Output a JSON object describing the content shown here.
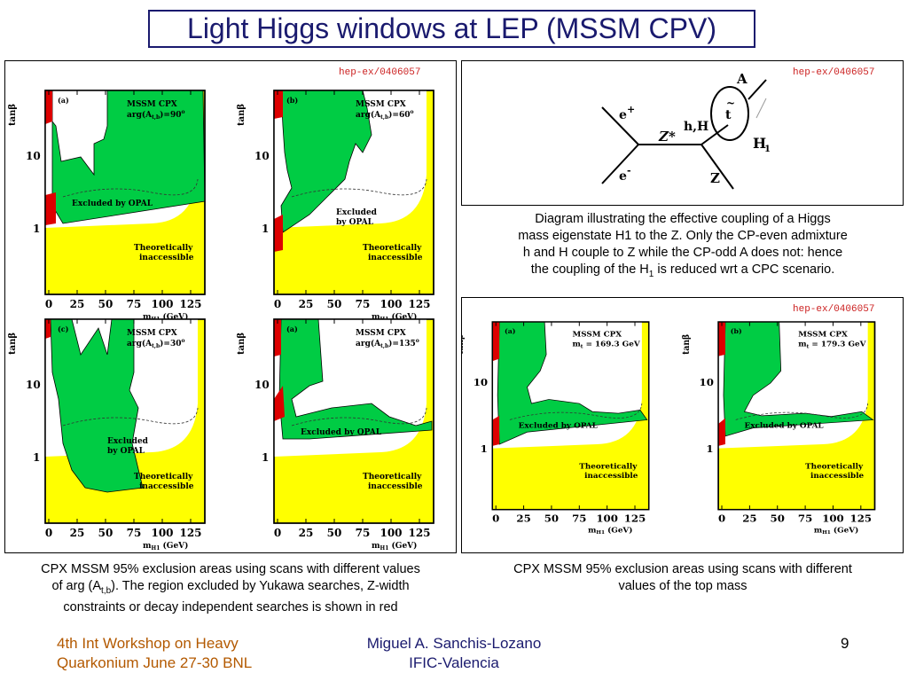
{
  "slide": {
    "title": "Light Higgs windows at LEP (MSSM CPV)",
    "page_number": "9"
  },
  "left_panel": {
    "ref": "hep-ex/0406057",
    "caption_line1": "CPX MSSM 95% exclusion areas using scans  with different values",
    "caption_line2_pre": "of arg (A",
    "caption_line2_sub": "t,b",
    "caption_line2_post": "). The region excluded by Yukawa searches, Z-width",
    "caption_line3": "constraints or decay independent searches is shown in red",
    "plots": [
      {
        "tag": "(a)",
        "label1": "MSSM CPX",
        "label2": "arg(A",
        "sub": "t,b",
        "label2_post": ")=90",
        "sup": "o",
        "excluded": "Excluded by OPAL",
        "theoretical1": "Theoretically",
        "theoretical2": "inaccessible"
      },
      {
        "tag": "(b)",
        "label1": "MSSM CPX",
        "label2": "arg(A",
        "sub": "t,b",
        "label2_post": ")=60",
        "sup": "o",
        "excluded": "Excluded",
        "excluded2": "by OPAL",
        "theoretical1": "Theoretically",
        "theoretical2": "inaccessible"
      },
      {
        "tag": "(c)",
        "label1": "MSSM CPX",
        "label2": "arg(A",
        "sub": "t,b",
        "label2_post": ")=30",
        "sup": "o",
        "excluded": "Excluded",
        "excluded2": "by OPAL",
        "theoretical1": "Theoretically",
        "theoretical2": "inaccessible"
      },
      {
        "tag": "(a)",
        "label1": "MSSM CPX",
        "label2": "arg(A",
        "sub": "t,b",
        "label2_post": ")=135",
        "sup": "o",
        "excluded": "Excluded by OPAL",
        "theoretical1": "Theoretically",
        "theoretical2": "inaccessible"
      }
    ]
  },
  "diagram_panel": {
    "ref": "hep-ex/0406057",
    "labels": {
      "eplus": "e",
      "eplus_sup": "+",
      "eminus": "e",
      "eminus_sup": "-",
      "zstar": "Z*",
      "hH": "h,H",
      "A": "A",
      "top": "t",
      "H1": "H",
      "H1_sub": "1",
      "Z": "Z"
    },
    "caption_line1": "Diagram illustrating the effective coupling of a Higgs",
    "caption_line2": "mass eigenstate H1 to the Z. Only the CP-even admixture",
    "caption_line3": "h and H couple to Z while the CP-odd A does not: hence",
    "caption_line4_pre": "the coupling of the H",
    "caption_line4_sub": "1",
    "caption_line4_post": " is reduced wrt a CPC scenario."
  },
  "right_panel": {
    "ref": "hep-ex/0406057",
    "caption_line1": "CPX MSSM 95% exclusion areas using scans with different",
    "caption_line2": "values of the top mass",
    "plots": [
      {
        "tag": "(a)",
        "label1": "MSSM CPX",
        "label2": "m",
        "sub": "t",
        "label2_post": " = 169.3 GeV",
        "excluded": "Excluded by OPAL",
        "theoretical1": "Theoretically",
        "theoretical2": "inaccessible"
      },
      {
        "tag": "(b)",
        "label1": "MSSM CPX",
        "label2": "m",
        "sub": "t",
        "label2_post": " = 179.3 GeV",
        "excluded": "Excluded by OPAL",
        "theoretical1": "Theoretically",
        "theoretical2": "inaccessible"
      }
    ]
  },
  "axes": {
    "ylabel": "tanβ",
    "xlabel": "m",
    "xlabel_sub": "H1",
    "xlabel_post": " (GeV)",
    "xticks": [
      "0",
      "25",
      "50",
      "75",
      "100",
      "125"
    ],
    "yticks": [
      "10",
      "1"
    ]
  },
  "footer": {
    "left_line1": "4th Int Workshop on Heavy",
    "left_line2": "Quarkonium  June 27-30 BNL",
    "center_line1": "Miguel A. Sanchis-Lozano",
    "center_line2": "IFIC-Valencia"
  },
  "colors": {
    "title": "#1a1a6e",
    "footer": "#b35900",
    "footer_center": "#1a1a6e",
    "excluded": "#00cc44",
    "theoretical": "#ffff00",
    "red_region": "#dd0000"
  }
}
